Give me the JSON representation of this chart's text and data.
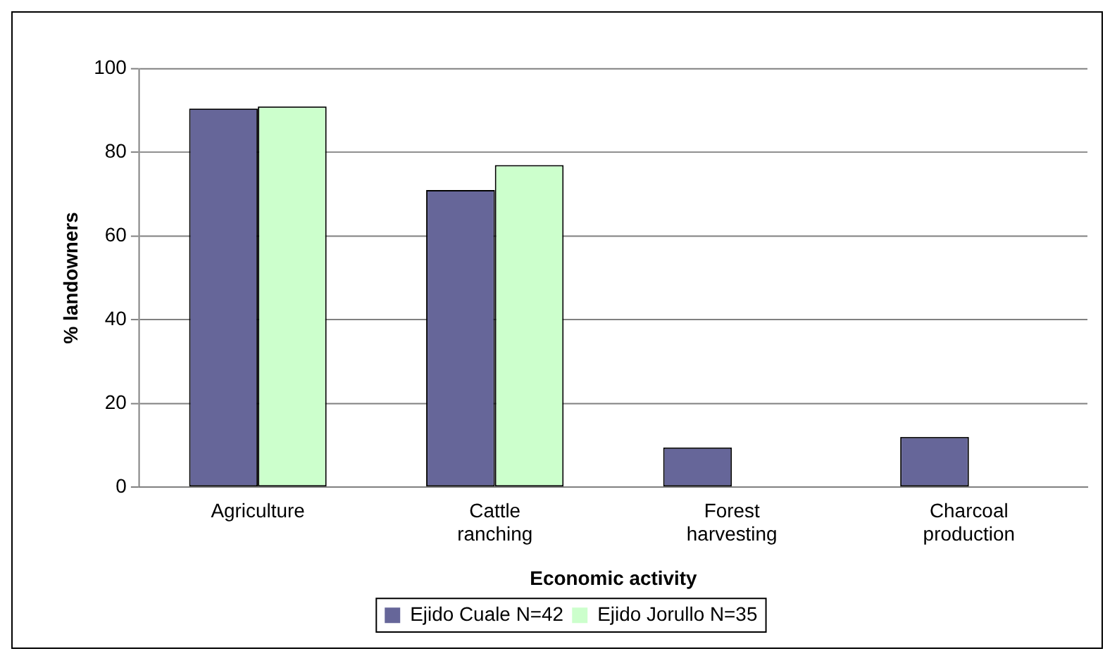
{
  "chart_data": {
    "type": "bar",
    "xlabel": "Economic activity",
    "ylabel": "% landowners",
    "categories": [
      "Agriculture",
      "Cattle ranching",
      "Forest harvesting",
      "Charcoal production"
    ],
    "series": [
      {
        "name": "Ejido Cuale N=42",
        "color": "#666699",
        "values": [
          90.5,
          71,
          9.5,
          12
        ]
      },
      {
        "name": "Ejido Jorullo N=35",
        "color": "#ccffcc",
        "values": [
          91,
          77,
          null,
          null
        ]
      }
    ],
    "ylim": [
      0,
      100
    ],
    "yticks": [
      0,
      20,
      40,
      60,
      80,
      100
    ],
    "grid": "y",
    "legend": "bottom"
  }
}
